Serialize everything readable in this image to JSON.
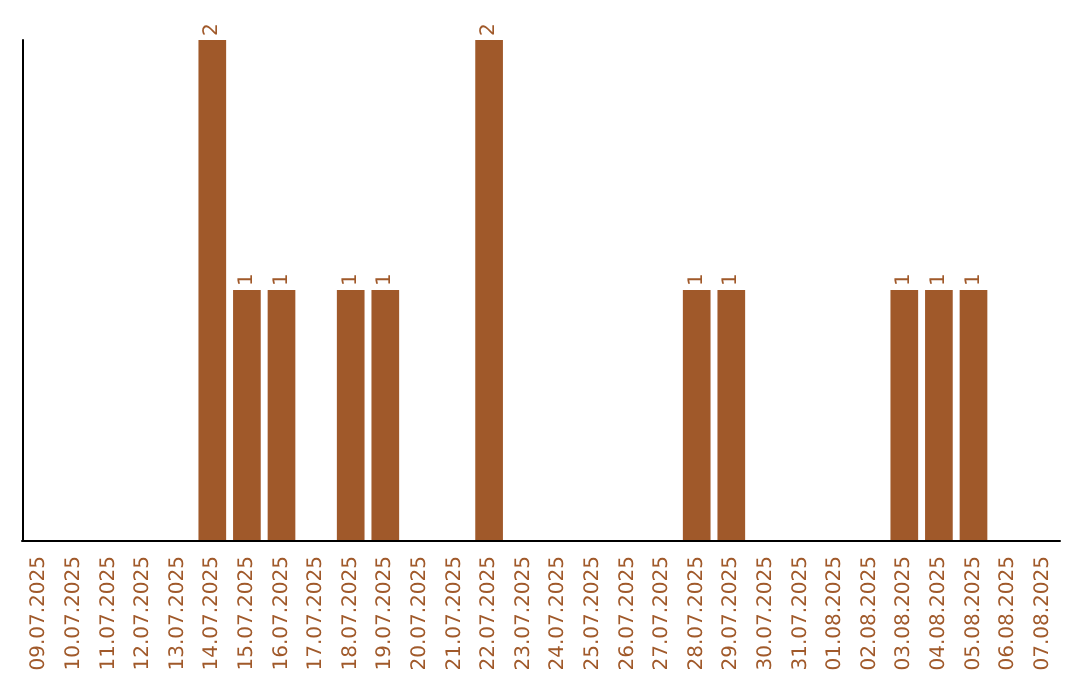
{
  "chart_data": {
    "type": "bar",
    "categories": [
      "09.07.2025",
      "10.07.2025",
      "11.07.2025",
      "12.07.2025",
      "13.07.2025",
      "14.07.2025",
      "15.07.2025",
      "16.07.2025",
      "17.07.2025",
      "18.07.2025",
      "19.07.2025",
      "20.07.2025",
      "21.07.2025",
      "22.07.2025",
      "23.07.2025",
      "24.07.2025",
      "25.07.2025",
      "26.07.2025",
      "27.07.2025",
      "28.07.2025",
      "29.07.2025",
      "30.07.2025",
      "31.07.2025",
      "01.08.2025",
      "02.08.2025",
      "03.08.2025",
      "04.08.2025",
      "05.08.2025",
      "06.08.2025",
      "07.08.2025"
    ],
    "values": [
      0,
      0,
      0,
      0,
      0,
      2,
      1,
      1,
      0,
      1,
      1,
      0,
      0,
      2,
      0,
      0,
      0,
      0,
      0,
      1,
      1,
      0,
      0,
      0,
      0,
      1,
      1,
      1,
      0,
      0
    ],
    "value_labels": [
      null,
      null,
      null,
      null,
      null,
      "2",
      "1",
      "1",
      null,
      "1",
      "1",
      null,
      null,
      "2",
      null,
      null,
      null,
      null,
      null,
      "1",
      "1",
      null,
      null,
      null,
      null,
      "1",
      "1",
      "1",
      null,
      null
    ],
    "color": "#a0592a",
    "tick_labels": "x"
  }
}
